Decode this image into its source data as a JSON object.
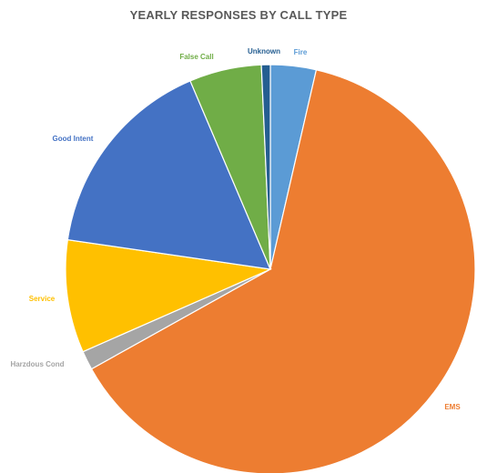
{
  "chart_data": {
    "type": "pie",
    "title": "YEARLY RESPONSES BY CALL TYPE",
    "slices": [
      {
        "label": "Fire",
        "value": 3.6,
        "color": "#5B9BD5"
      },
      {
        "label": "EMS",
        "value": 63.3,
        "color": "#ED7D31"
      },
      {
        "label": "Harzdous Cond",
        "value": 1.5,
        "color": "#A5A5A5"
      },
      {
        "label": "Service",
        "value": 8.9,
        "color": "#FFC000"
      },
      {
        "label": "Good Intent",
        "value": 16.3,
        "color": "#4472C4"
      },
      {
        "label": "False Call",
        "value": 5.7,
        "color": "#70AD47"
      },
      {
        "label": "Unknown",
        "value": 0.7,
        "color": "#255E91"
      }
    ],
    "start_angle_deg": 0,
    "direction": "clockwise",
    "legend": "none"
  }
}
